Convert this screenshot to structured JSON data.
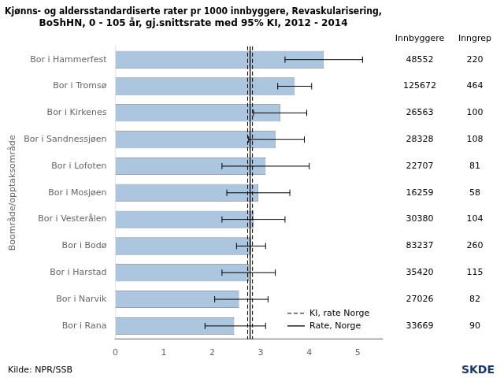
{
  "chart_data": {
    "type": "bar",
    "orientation": "horizontal",
    "title": "Kjønns- og aldersstandardiserte rater pr 1000 innbyggere, Revaskularisering,\nBoShHN, 0 - 105 år, gj.snittsrate med 95% KI, 2012 - 2014",
    "ylabel": "Boområde/opptaksområde",
    "categories": [
      "Bor i Hammerfest",
      "Bor i Tromsø",
      "Bor i Kirkenes",
      "Bor i Sandnessjøen",
      "Bor i Lofoten",
      "Bor i Mosjøen",
      "Bor i Vesterålen",
      "Bor i Bodø",
      "Bor i Harstad",
      "Bor i Narvik",
      "Bor i Rana"
    ],
    "values": [
      4.3,
      3.7,
      3.4,
      3.3,
      3.1,
      2.95,
      2.85,
      2.8,
      2.75,
      2.55,
      2.45
    ],
    "ci_low": [
      3.5,
      3.35,
      2.85,
      2.75,
      2.2,
      2.3,
      2.2,
      2.5,
      2.2,
      2.05,
      1.85
    ],
    "ci_high": [
      5.1,
      4.05,
      3.95,
      3.9,
      4.0,
      3.6,
      3.5,
      3.1,
      3.3,
      3.15,
      3.1
    ],
    "color": "#adc6e0",
    "xlim": [
      0,
      5.5
    ],
    "xticks": [
      0,
      1,
      2,
      3,
      4,
      5
    ],
    "grid": false,
    "reference_lines": [
      {
        "name": "KI, rate Norge",
        "values": [
          2.73,
          2.83
        ],
        "line_style": "dashed"
      },
      {
        "name": "Rate, Norge",
        "values": [
          2.78
        ],
        "line_style": "solid"
      }
    ],
    "columns": [
      {
        "name": "Innbyggere",
        "values": [
          48552,
          125672,
          26563,
          28328,
          22707,
          16259,
          30380,
          83237,
          35420,
          27026,
          33669
        ]
      },
      {
        "name": "Inngrep",
        "values": [
          220,
          464,
          100,
          108,
          81,
          58,
          104,
          260,
          115,
          82,
          90
        ]
      }
    ],
    "source": "Kilde: NPR/SSB",
    "logo_text": "SKDE",
    "logo_color": "#1a3a6b"
  }
}
